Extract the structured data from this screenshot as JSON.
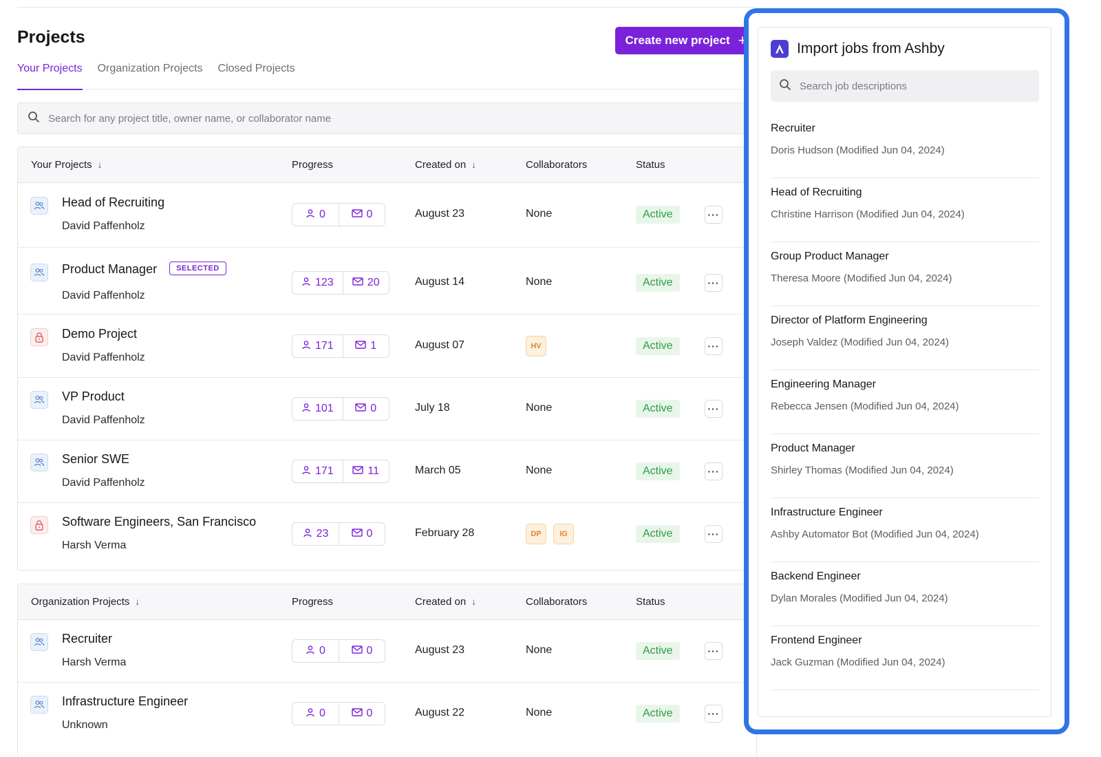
{
  "header": {
    "title": "Projects",
    "create_button_label": "Create new project",
    "create_button_icon": "plus-icon"
  },
  "tabs": [
    {
      "label": "Your Projects",
      "active": true
    },
    {
      "label": "Organization Projects",
      "active": false
    },
    {
      "label": "Closed Projects",
      "active": false
    }
  ],
  "search": {
    "placeholder": "Search for any project title, owner name, or collaborator name"
  },
  "your_projects_table": {
    "columns": {
      "name": "Your Projects",
      "progress": "Progress",
      "created": "Created on",
      "collaborators": "Collaborators",
      "status": "Status"
    },
    "rows": [
      {
        "title": "Head of Recruiting",
        "owner": "David Paffenholz",
        "icon": "people-icon",
        "candidates": "0",
        "messages": "0",
        "created": "August 23",
        "collaborators": "None",
        "status": "Active"
      },
      {
        "title": "Product Manager",
        "badge": "SELECTED",
        "owner": "David Paffenholz",
        "icon": "people-icon",
        "candidates": "123",
        "messages": "20",
        "created": "August 14",
        "collaborators": "None",
        "status": "Active"
      },
      {
        "title": "Demo Project",
        "owner": "David Paffenholz",
        "icon": "lock-icon",
        "candidates": "171",
        "messages": "1",
        "created": "August 07",
        "collaborator_avatars": [
          "HV"
        ],
        "status": "Active"
      },
      {
        "title": "VP Product",
        "owner": "David Paffenholz",
        "icon": "people-icon",
        "candidates": "101",
        "messages": "0",
        "created": "July 18",
        "collaborators": "None",
        "status": "Active"
      },
      {
        "title": "Senior SWE",
        "owner": "David Paffenholz",
        "icon": "people-icon",
        "candidates": "171",
        "messages": "11",
        "created": "March 05",
        "collaborators": "None",
        "status": "Active"
      },
      {
        "title": "Software Engineers, San Francisco",
        "owner": "Harsh Verma",
        "icon": "lock-icon",
        "candidates": "23",
        "messages": "0",
        "created": "February 28",
        "collaborator_avatars": [
          "DP",
          "IG"
        ],
        "status": "Active"
      }
    ]
  },
  "org_projects_table": {
    "columns": {
      "name": "Organization Projects",
      "progress": "Progress",
      "created": "Created on",
      "collaborators": "Collaborators",
      "status": "Status"
    },
    "rows": [
      {
        "title": "Recruiter",
        "owner": "Harsh Verma",
        "icon": "people-icon",
        "candidates": "0",
        "messages": "0",
        "created": "August 23",
        "collaborators": "None",
        "status": "Active"
      },
      {
        "title": "Infrastructure Engineer",
        "owner": "Unknown",
        "icon": "people-icon",
        "candidates": "0",
        "messages": "0",
        "created": "August 22",
        "collaborators": "None",
        "status": "Active"
      }
    ]
  },
  "import_panel": {
    "title": "Import jobs from Ashby",
    "logo": "ashby-logo-icon",
    "search_placeholder": "Search job descriptions",
    "jobs": [
      {
        "title": "Recruiter",
        "meta": "Doris Hudson (Modified Jun 04, 2024)"
      },
      {
        "title": "Head of Recruiting",
        "meta": "Christine Harrison (Modified Jun 04, 2024)"
      },
      {
        "title": "Group Product Manager",
        "meta": "Theresa Moore (Modified Jun 04, 2024)"
      },
      {
        "title": "Director of Platform Engineering",
        "meta": "Joseph Valdez (Modified Jun 04, 2024)"
      },
      {
        "title": "Engineering Manager",
        "meta": "Rebecca Jensen (Modified Jun 04, 2024)"
      },
      {
        "title": "Product Manager",
        "meta": "Shirley Thomas (Modified Jun 04, 2024)"
      },
      {
        "title": "Infrastructure Engineer",
        "meta": "Ashby Automator Bot (Modified Jun 04, 2024)"
      },
      {
        "title": "Backend Engineer",
        "meta": "Dylan Morales (Modified Jun 04, 2024)"
      },
      {
        "title": "Frontend Engineer",
        "meta": "Jack Guzman (Modified Jun 04, 2024)"
      }
    ]
  },
  "colors": {
    "accent": "#7a22d9",
    "active_bg": "#e8f6ea",
    "active_text": "#2f9a45",
    "panel_highlight": "#2f74e8"
  }
}
